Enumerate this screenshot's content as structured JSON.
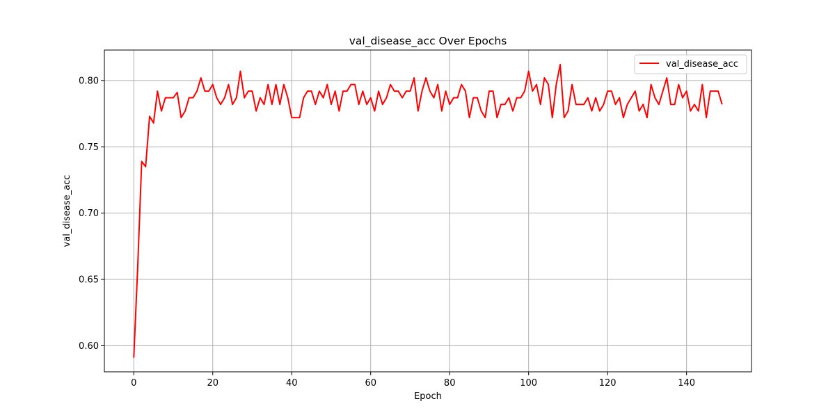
{
  "chart_data": {
    "type": "line",
    "title": "val_disease_acc Over Epochs",
    "xlabel": "Epoch",
    "ylabel": "val_disease_acc",
    "xlim": [
      -7.45,
      156.45
    ],
    "ylim": [
      0.5803,
      0.823
    ],
    "x_ticks": [
      0,
      20,
      40,
      60,
      80,
      100,
      120,
      140
    ],
    "y_ticks": [
      0.6,
      0.65,
      0.7,
      0.75,
      0.8
    ],
    "x_tick_labels": [
      "0",
      "20",
      "40",
      "60",
      "80",
      "100",
      "120",
      "140"
    ],
    "y_tick_labels": [
      "0.60",
      "0.65",
      "0.70",
      "0.75",
      "0.80"
    ],
    "grid": true,
    "legend_position": "top-right",
    "series": [
      {
        "name": "val_disease_acc",
        "color": "#ff0000",
        "x_start": 0,
        "x_step": 1,
        "values": [
          0.591,
          0.66,
          0.739,
          0.735,
          0.773,
          0.768,
          0.792,
          0.777,
          0.787,
          0.787,
          0.787,
          0.791,
          0.772,
          0.777,
          0.787,
          0.787,
          0.792,
          0.802,
          0.792,
          0.792,
          0.797,
          0.787,
          0.782,
          0.787,
          0.797,
          0.782,
          0.787,
          0.807,
          0.787,
          0.792,
          0.792,
          0.777,
          0.787,
          0.782,
          0.797,
          0.782,
          0.797,
          0.782,
          0.797,
          0.787,
          0.772,
          0.772,
          0.772,
          0.787,
          0.792,
          0.792,
          0.782,
          0.792,
          0.787,
          0.797,
          0.782,
          0.792,
          0.777,
          0.792,
          0.792,
          0.797,
          0.797,
          0.782,
          0.792,
          0.782,
          0.787,
          0.777,
          0.792,
          0.782,
          0.787,
          0.797,
          0.792,
          0.792,
          0.787,
          0.792,
          0.792,
          0.802,
          0.777,
          0.792,
          0.802,
          0.792,
          0.787,
          0.797,
          0.777,
          0.792,
          0.782,
          0.787,
          0.787,
          0.797,
          0.792,
          0.772,
          0.787,
          0.787,
          0.777,
          0.772,
          0.792,
          0.792,
          0.772,
          0.782,
          0.782,
          0.787,
          0.777,
          0.787,
          0.787,
          0.792,
          0.807,
          0.792,
          0.797,
          0.782,
          0.802,
          0.797,
          0.772,
          0.797,
          0.812,
          0.772,
          0.777,
          0.797,
          0.782,
          0.782,
          0.782,
          0.787,
          0.777,
          0.787,
          0.777,
          0.782,
          0.792,
          0.792,
          0.782,
          0.787,
          0.772,
          0.782,
          0.787,
          0.792,
          0.777,
          0.782,
          0.772,
          0.797,
          0.787,
          0.782,
          0.792,
          0.802,
          0.782,
          0.782,
          0.797,
          0.787,
          0.792,
          0.777,
          0.782,
          0.777,
          0.797,
          0.772,
          0.792,
          0.792,
          0.792,
          0.782
        ]
      }
    ]
  }
}
